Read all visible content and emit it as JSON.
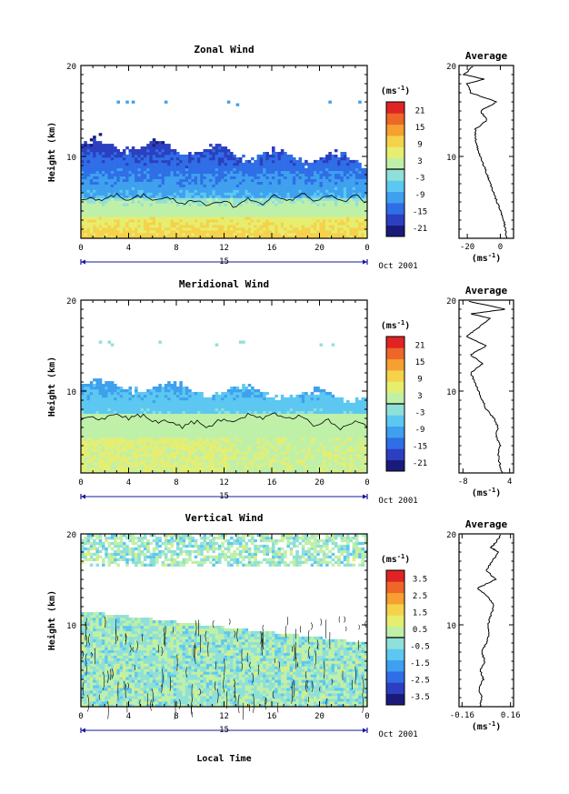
{
  "chart_data": [
    {
      "type": "heatmap",
      "title": "Zonal Wind",
      "ylabel": "Height (km)",
      "ylim": [
        1,
        20
      ],
      "y_ticks": [
        10,
        20
      ],
      "x_ticks": [
        "0",
        "4",
        "8",
        "12",
        "16",
        "20",
        "0"
      ],
      "date_label": "15",
      "month_label": "Oct 2001",
      "colorbar": {
        "unit": "(ms",
        "unit_exp": "-1",
        "ticks": [
          "21",
          "15",
          "9",
          "3",
          "-3",
          "-9",
          "-15",
          "-21"
        ],
        "range": [
          -24,
          24
        ],
        "colors": [
          "#1a1a7a",
          "#2b3fc0",
          "#2f6ee6",
          "#3ea0ee",
          "#5cc8f2",
          "#8fe0d8",
          "#bff0a8",
          "#e6ee70",
          "#f5d24a",
          "#f5a030",
          "#ee6628",
          "#e02424"
        ]
      },
      "average_profile": {
        "title": "Average",
        "xlabel": "(ms",
        "xlabel_exp": "-1",
        "xlim": [
          -25,
          8
        ],
        "x_ticks": [
          "-20",
          "0"
        ],
        "y_ticks": [
          "10",
          "20"
        ],
        "x": [
          4,
          3,
          2,
          0,
          -2,
          -4,
          -6,
          -8,
          -10,
          -12,
          -14,
          -15,
          -15,
          -8,
          -12,
          -2,
          -18,
          -20,
          -10,
          -22,
          -16
        ],
        "y": [
          1,
          2,
          3,
          4,
          5,
          6,
          7,
          8,
          9,
          10,
          11,
          12,
          13,
          14,
          15,
          16,
          17,
          18,
          18.5,
          19,
          20
        ]
      }
    },
    {
      "type": "heatmap",
      "title": "Meridional Wind",
      "ylabel": "Height (km)",
      "ylim": [
        1,
        20
      ],
      "y_ticks": [
        10,
        20
      ],
      "x_ticks": [
        "0",
        "4",
        "8",
        "12",
        "16",
        "20",
        "0"
      ],
      "date_label": "15",
      "month_label": "Oct 2001",
      "colorbar": {
        "unit": "(ms",
        "unit_exp": "-1",
        "ticks": [
          "21",
          "15",
          "9",
          "3",
          "-3",
          "-9",
          "-15",
          "-21"
        ],
        "range": [
          -24,
          24
        ],
        "colors": [
          "#1a1a7a",
          "#2b3fc0",
          "#2f6ee6",
          "#3ea0ee",
          "#5cc8f2",
          "#8fe0d8",
          "#bff0a8",
          "#e6ee70",
          "#f5d24a",
          "#f5a030",
          "#ee6628",
          "#e02424"
        ]
      },
      "average_profile": {
        "title": "Average",
        "xlabel": "(ms",
        "xlabel_exp": "-1",
        "xlim": [
          -9,
          5
        ],
        "x_ticks": [
          "-8",
          "4"
        ],
        "y_ticks": [
          "10",
          "20"
        ],
        "x": [
          2,
          1.5,
          1,
          1.5,
          0.5,
          1,
          0,
          -2,
          -3,
          -4,
          -5,
          -6,
          -3,
          -6,
          -2,
          -7,
          -4,
          -1,
          -6,
          3,
          -8
        ],
        "y": [
          1,
          2,
          3,
          4,
          5,
          6,
          7,
          8,
          9,
          10,
          11,
          12,
          13,
          14,
          15,
          16,
          17,
          18,
          18.5,
          19,
          20
        ]
      }
    },
    {
      "type": "heatmap",
      "title": "Vertical Wind",
      "ylabel": "Height (km)",
      "xlabel": "Local Time",
      "ylim": [
        1,
        20
      ],
      "y_ticks": [
        10,
        20
      ],
      "x_ticks": [
        "0",
        "4",
        "8",
        "12",
        "16",
        "20",
        "0"
      ],
      "date_label": "15",
      "month_label": "Oct 2001",
      "colorbar": {
        "unit": "(ms",
        "unit_exp": "-1",
        "ticks": [
          "3.5",
          "2.5",
          "1.5",
          "0.5",
          "-0.5",
          "-1.5",
          "-2.5",
          "-3.5"
        ],
        "range": [
          -4,
          4
        ],
        "colors": [
          "#1a1a7a",
          "#2b3fc0",
          "#2f6ee6",
          "#3ea0ee",
          "#5cc8f2",
          "#8fe0d8",
          "#bff0a8",
          "#e6ee70",
          "#f5d24a",
          "#f5a030",
          "#ee6628",
          "#e02424"
        ]
      },
      "average_profile": {
        "title": "Average",
        "xlabel": "(ms",
        "xlabel_exp": "-1",
        "xlim": [
          -0.18,
          0.18
        ],
        "x_ticks": [
          "-0.16",
          "0.16"
        ],
        "y_ticks": [
          "10",
          "20"
        ],
        "x": [
          -0.04,
          -0.03,
          -0.05,
          -0.02,
          -0.04,
          -0.01,
          -0.03,
          0.0,
          0.02,
          0.01,
          0.03,
          0.05,
          0.02,
          -0.06,
          0.06,
          0.0,
          0.04,
          0.08,
          0.03,
          0.06,
          0.1
        ],
        "y": [
          1,
          2,
          3,
          4,
          5,
          6,
          7,
          8,
          9,
          10,
          11,
          12,
          13,
          14,
          15,
          16,
          17,
          18,
          18.5,
          19,
          20
        ]
      }
    }
  ]
}
